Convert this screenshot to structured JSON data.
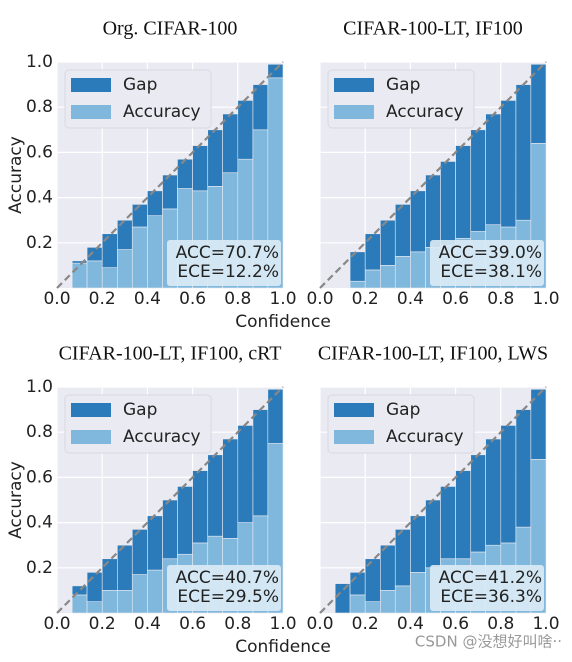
{
  "chart_data": [
    {
      "type": "histogram",
      "title": "Org. CIFAR-100",
      "xlabel": "Confidence",
      "ylabel": "Accuracy",
      "bins": [
        0,
        0.067,
        0.133,
        0.2,
        0.267,
        0.333,
        0.4,
        0.467,
        0.533,
        0.6,
        0.667,
        0.733,
        0.8,
        0.867,
        0.933,
        1
      ],
      "series": [
        {
          "name": "Gap",
          "color": "#2b7bba",
          "values": [
            null,
            0.01,
            0.06,
            0.15,
            0.13,
            0.1,
            0.11,
            0.15,
            0.13,
            0.2,
            0.25,
            0.26,
            0.26,
            0.2,
            0.06
          ]
        },
        {
          "name": "Accuracy",
          "color": "#7fb8dc",
          "values": [
            null,
            0.11,
            0.12,
            0.09,
            0.17,
            0.27,
            0.32,
            0.35,
            0.44,
            0.43,
            0.45,
            0.51,
            0.57,
            0.7,
            0.93
          ]
        }
      ],
      "annotations": [
        "ACC=70.7%",
        "ECE=12.2%"
      ],
      "xlim": [
        0,
        1
      ],
      "ylim": [
        0,
        1
      ],
      "xticks": [
        {
          "value": 0,
          "label": "0.0"
        },
        0.2,
        0.4,
        0.6,
        0.8,
        {
          "value": 1,
          "label": "1.0"
        }
      ],
      "yticks": [
        0.2,
        0.4,
        0.6,
        0.8,
        {
          "value": 1,
          "label": "1.0"
        }
      ],
      "show_ytick_labels": true,
      "grid": true,
      "legend": "upper left"
    },
    {
      "type": "histogram",
      "title": "CIFAR-100-LT, IF100",
      "bins": [
        0,
        0.067,
        0.133,
        0.2,
        0.267,
        0.333,
        0.4,
        0.467,
        0.533,
        0.6,
        0.667,
        0.733,
        0.8,
        0.867,
        0.933,
        1
      ],
      "series": [
        {
          "name": "Gap",
          "color": "#2b7bba",
          "values": [
            null,
            null,
            0.13,
            0.16,
            0.2,
            0.23,
            0.27,
            0.32,
            0.37,
            0.41,
            0.45,
            0.49,
            0.56,
            0.6,
            0.35
          ]
        },
        {
          "name": "Accuracy",
          "color": "#7fb8dc",
          "values": [
            null,
            null,
            0.03,
            0.08,
            0.1,
            0.14,
            0.16,
            0.18,
            0.19,
            0.22,
            0.25,
            0.28,
            0.27,
            0.3,
            0.64
          ]
        }
      ],
      "annotations": [
        "ACC=39.0%",
        "ECE=38.1%"
      ],
      "xlim": [
        0,
        1
      ],
      "ylim": [
        0,
        1
      ],
      "xticks": [
        {
          "value": 0,
          "label": "0.0"
        },
        0.2,
        0.4,
        0.6,
        0.8,
        {
          "value": 1,
          "label": "1.0"
        }
      ],
      "yticks": [
        0.2,
        0.4,
        0.6,
        0.8,
        {
          "value": 1,
          "label": "1.0"
        }
      ],
      "show_ytick_labels": false,
      "grid": true,
      "legend": "upper left"
    },
    {
      "type": "histogram",
      "title": "CIFAR-100-LT, IF100, cRT",
      "xlabel": "Confidence",
      "ylabel": "Accuracy",
      "bins": [
        0,
        0.067,
        0.133,
        0.2,
        0.267,
        0.333,
        0.4,
        0.467,
        0.533,
        0.6,
        0.667,
        0.733,
        0.8,
        0.867,
        0.933,
        1
      ],
      "series": [
        {
          "name": "Gap",
          "color": "#2b7bba",
          "values": [
            null,
            0.04,
            0.13,
            0.14,
            0.2,
            0.2,
            0.24,
            0.26,
            0.3,
            0.32,
            0.36,
            0.44,
            0.43,
            0.47,
            0.24
          ]
        },
        {
          "name": "Accuracy",
          "color": "#7fb8dc",
          "values": [
            null,
            0.08,
            0.05,
            0.1,
            0.1,
            0.17,
            0.19,
            0.24,
            0.26,
            0.31,
            0.34,
            0.33,
            0.4,
            0.43,
            0.75
          ]
        }
      ],
      "annotations": [
        "ACC=40.7%",
        "ECE=29.5%"
      ],
      "xlim": [
        0,
        1
      ],
      "ylim": [
        0,
        1
      ],
      "xticks": [
        {
          "value": 0,
          "label": "0.0"
        },
        0.2,
        0.4,
        0.6,
        0.8,
        {
          "value": 1,
          "label": "1.0"
        }
      ],
      "yticks": [
        0.2,
        0.4,
        0.6,
        0.8,
        {
          "value": 1,
          "label": "1.0"
        }
      ],
      "show_ytick_labels": true,
      "grid": true,
      "legend": "upper left"
    },
    {
      "type": "histogram",
      "title": "CIFAR-100-LT, IF100, LWS",
      "bins": [
        0,
        0.067,
        0.133,
        0.2,
        0.267,
        0.333,
        0.4,
        0.467,
        0.533,
        0.6,
        0.667,
        0.733,
        0.8,
        0.867,
        0.933,
        1
      ],
      "series": [
        {
          "name": "Gap",
          "color": "#2b7bba",
          "values": [
            null,
            0.13,
            0.1,
            0.19,
            0.2,
            0.25,
            0.25,
            0.3,
            0.32,
            0.39,
            0.43,
            0.47,
            0.52,
            0.52,
            0.31
          ]
        },
        {
          "name": "Accuracy",
          "color": "#7fb8dc",
          "values": [
            null,
            0,
            0.08,
            0.05,
            0.1,
            0.12,
            0.18,
            0.2,
            0.24,
            0.24,
            0.27,
            0.3,
            0.31,
            0.38,
            0.68
          ]
        }
      ],
      "annotations": [
        "ACC=41.2%",
        "ECE=36.3%"
      ],
      "xlim": [
        0,
        1
      ],
      "ylim": [
        0,
        1
      ],
      "xticks": [
        {
          "value": 0,
          "label": "0.0"
        },
        0.2,
        0.4,
        0.6,
        0.8,
        {
          "value": 1,
          "label": "1.0"
        }
      ],
      "yticks": [
        0.2,
        0.4,
        0.6,
        0.8,
        {
          "value": 1,
          "label": "1.0"
        }
      ],
      "show_ytick_labels": false,
      "grid": true,
      "legend": "upper left"
    }
  ],
  "watermark": "CSDN @没想好叫啥··"
}
